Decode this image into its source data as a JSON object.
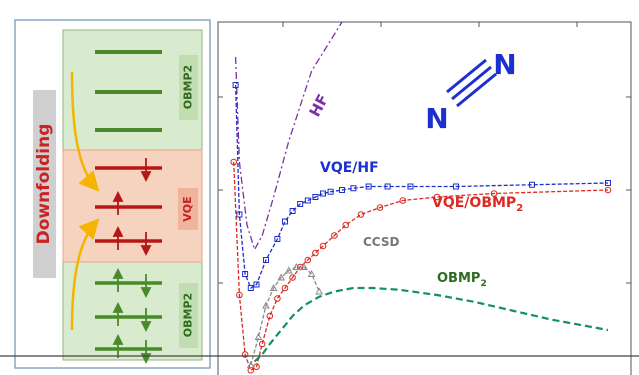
{
  "left_panel": {
    "title": "Downfolding",
    "top_label": "OBMP2",
    "middle_label": "VQE",
    "bottom_label": "OBMP2"
  },
  "molecule": {
    "atom_left": "N",
    "atom_right": "N"
  },
  "chart_data": {
    "type": "line",
    "title": "",
    "xlabel": "",
    "ylabel": "",
    "xlim": [
      0,
      100
    ],
    "ylim": [
      0,
      100
    ],
    "grid": false,
    "series": [
      {
        "name": "HF",
        "color": "#7b2fa8",
        "style": "dash-dot",
        "x": [
          2,
          3,
          5,
          7,
          9,
          12,
          16,
          22,
          30
        ],
        "y": [
          90,
          60,
          42,
          35,
          39,
          50,
          66,
          86,
          100
        ]
      },
      {
        "name": "VQE/HF",
        "color": "#1d2fcf",
        "style": "dashed-square-markers",
        "x": [
          2,
          3,
          4.5,
          6,
          7.5,
          10,
          13,
          15,
          17,
          19,
          21,
          23,
          25,
          27,
          30,
          33,
          37,
          42,
          48,
          60,
          80,
          100
        ],
        "y": [
          82,
          45,
          28,
          24,
          25,
          32,
          38,
          43,
          46,
          48,
          49,
          50,
          51,
          51.5,
          52,
          52.5,
          53,
          53,
          53,
          53,
          53.5,
          54
        ]
      },
      {
        "name": "VQE/OBMP₂",
        "color": "#dd2a20",
        "style": "dashed-circle-markers",
        "x": [
          1.5,
          3,
          4.5,
          6,
          7.5,
          9,
          11,
          13,
          15,
          17,
          19,
          21,
          23,
          25,
          28,
          31,
          35,
          40,
          46,
          55,
          70,
          100
        ],
        "y": [
          60,
          22,
          5,
          0.5,
          1.5,
          8,
          16,
          21,
          24,
          27,
          30,
          32,
          34,
          36,
          39,
          42,
          45,
          47,
          49,
          50,
          51,
          52
        ]
      },
      {
        "name": "CCSD",
        "color": "#8a8a8a",
        "style": "dashed-triangle-markers",
        "x": [
          6,
          8,
          10,
          12,
          14,
          16,
          18,
          20,
          22,
          24
        ],
        "y": [
          2,
          10,
          19,
          24,
          27,
          29,
          30,
          30,
          28,
          23
        ]
      },
      {
        "name": "OBMP₂",
        "color": "#159160",
        "style": "dashed",
        "x": [
          7,
          9,
          11,
          14,
          17,
          20,
          24,
          28,
          33,
          38,
          45,
          55,
          65,
          75,
          85,
          100
        ],
        "y": [
          3,
          5,
          8,
          12,
          16,
          19,
          21.5,
          23,
          24,
          24,
          23.5,
          22,
          20,
          17.5,
          15,
          12
        ]
      }
    ],
    "labels": {
      "hf": "HF",
      "vqe_hf": "VQE/HF",
      "vqe_obmp_prefix": "VQE/OBMP",
      "obmp_prefix": "OBMP",
      "sub2": "2",
      "ccsd": "CCSD"
    }
  }
}
